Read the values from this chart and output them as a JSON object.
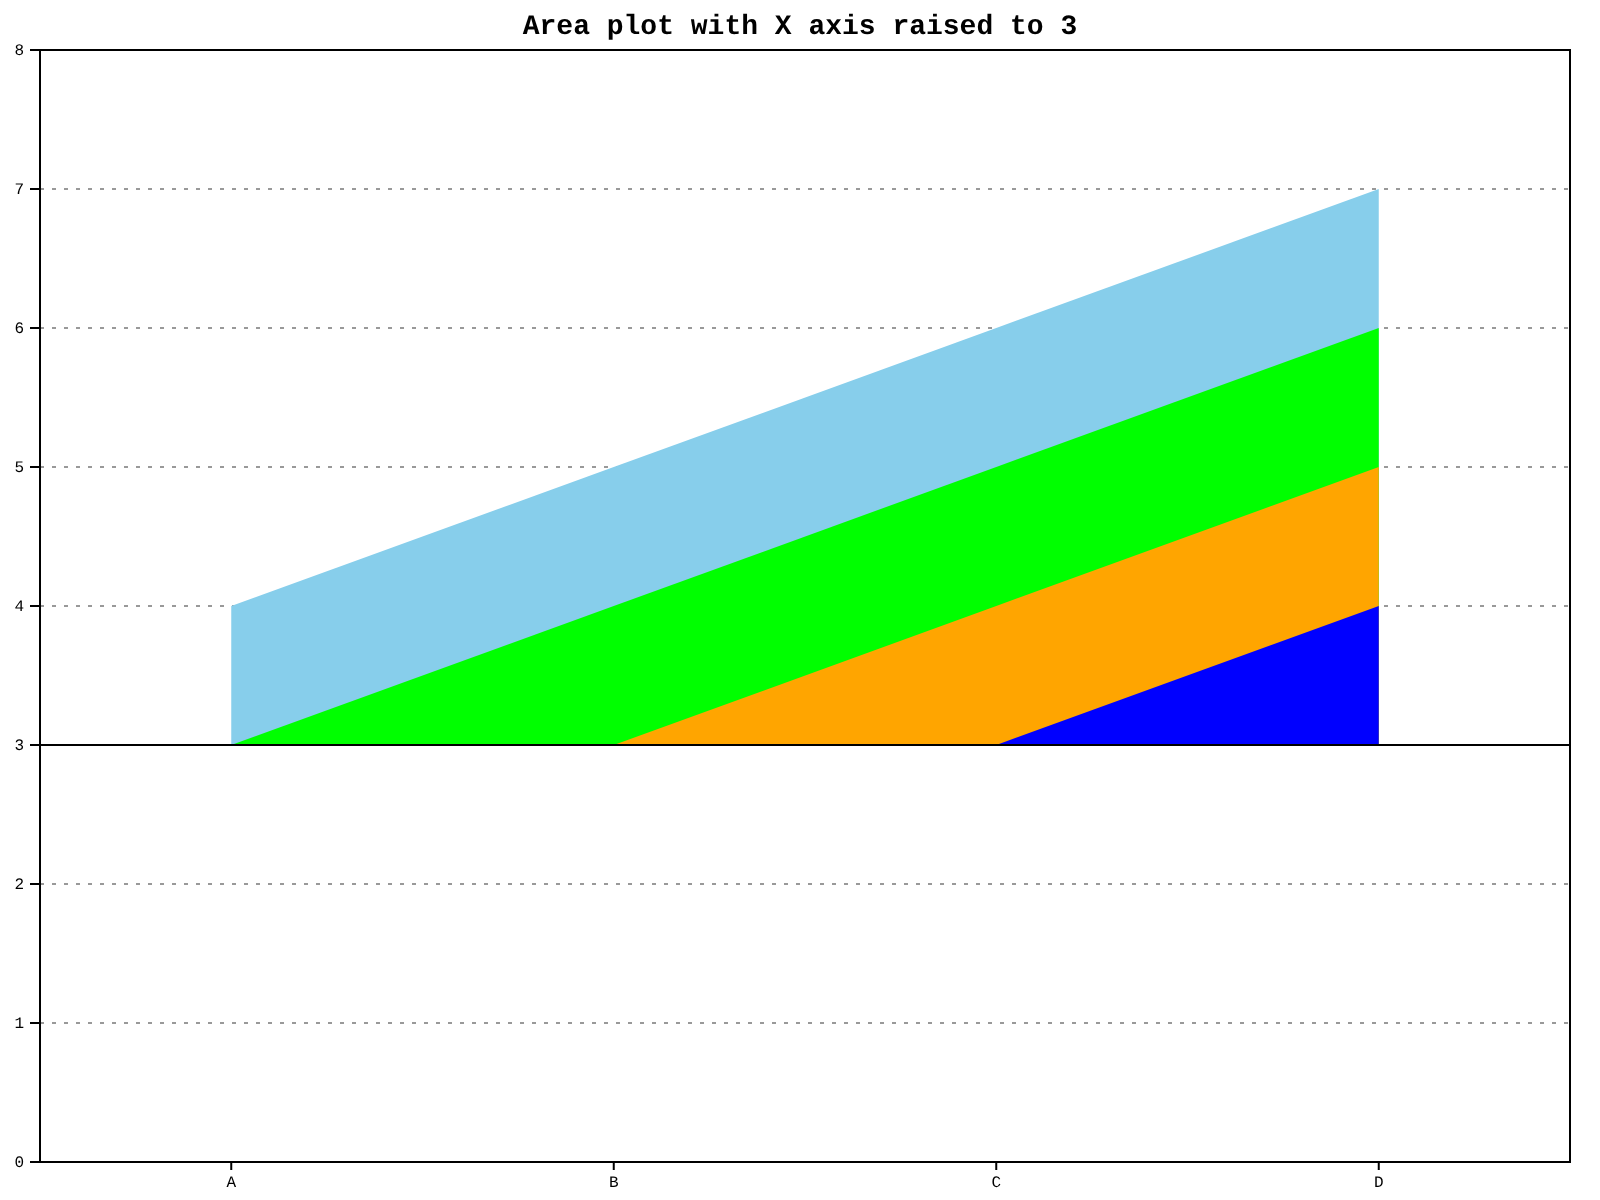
{
  "chart_data": {
    "type": "area",
    "title": "Area plot with X axis raised to 3",
    "categories": [
      "A",
      "B",
      "C",
      "D"
    ],
    "series": [
      {
        "color": "#87ceeb",
        "values": [
          4,
          5,
          6,
          7
        ]
      },
      {
        "color": "#00ff00",
        "values": [
          3,
          4,
          5,
          6
        ]
      },
      {
        "color": "#ffa500",
        "values": [
          3,
          3,
          4,
          5
        ]
      },
      {
        "color": "#0000ff",
        "values": [
          3,
          3,
          3,
          4
        ]
      }
    ],
    "ylim": [
      0,
      8
    ],
    "yticks": [
      0,
      1,
      2,
      3,
      4,
      5,
      6,
      7,
      8
    ],
    "grid": "y",
    "ref_lines": [
      {
        "axis": "y",
        "value": 3,
        "color": "#000000"
      }
    ]
  }
}
